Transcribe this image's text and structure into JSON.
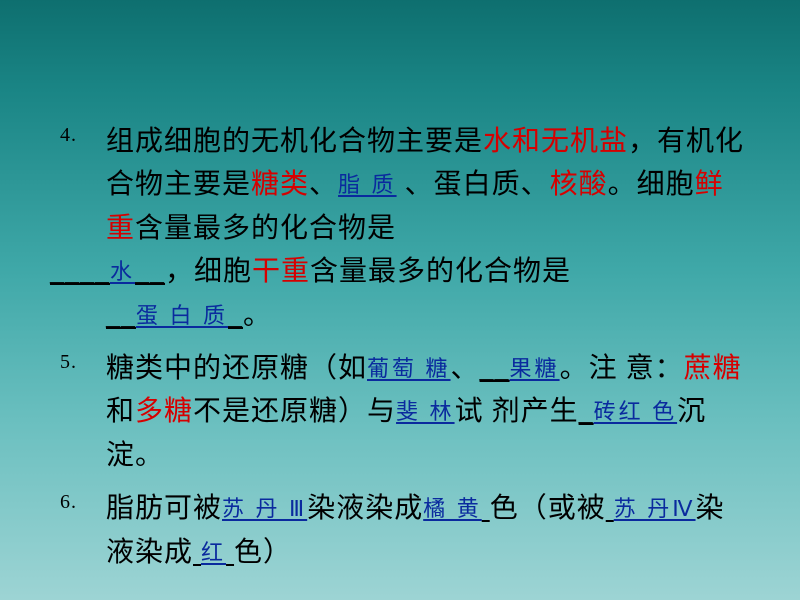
{
  "background": {
    "gradient_stops": [
      "#0e6f6f",
      "#1a8585",
      "#3fa8a8",
      "#6abfbf",
      "#9dd4d4"
    ]
  },
  "text_colors": {
    "normal": "#000000",
    "red": "#d60000",
    "blue": "#0a2a9e"
  },
  "font_sizes": {
    "body": 28,
    "blank": 22,
    "marker": 20
  },
  "items": [
    {
      "num": 4,
      "t1a": "组成细胞的无机化合物主要是",
      "t1b": "水和无机盐",
      "t1c": "，有机化合物主要是",
      "t1d": "糖类",
      "t1e": "、",
      "t1f_ul": "脂 质",
      "t1g": "、蛋白质、",
      "t1h": "核酸",
      "t1i": "。细胞",
      "t1j": "鲜重",
      "t1k": "含量最多的化合物是",
      "t1l_blank": "____",
      "t1m_ul": "水",
      "t1n_blank": "__",
      "t1o": "，细胞",
      "t1p": "干重",
      "t1q": "含量最多的化合物是",
      "t1r_blank": "__",
      "t1s_ul": "蛋   白  质",
      "t1t_blank": "_",
      "t1u": "。"
    },
    {
      "num": 5,
      "t2a": "糖类中的还原糖（如",
      "t2b_ul": "葡萄 糖",
      "t2c": "、",
      "t2d_blank": "__",
      "t2e_ul": "果糖",
      "t2f": "。",
      "t2g": "注 意：",
      "t2h": "蔗糖",
      "t2i": "和",
      "t2j": "多糖",
      "t2k": "不是还原糖）与",
      "t2l_ul": "斐 林",
      "t2m": "试 剂产生",
      "t2n_blank": "_",
      "t2o_ul": "砖红 色",
      "t2p": "沉淀。"
    },
    {
      "num": 6,
      "t3a": "脂肪可被",
      "t3b_ul": "苏 丹 Ⅲ",
      "t3c": "染液染成",
      "t3d_ul": "橘 黄",
      "t3e_blank": "      ",
      "t3f": "色（或被",
      "t3g_blank": "      ",
      "t3h_ul": "苏 丹Ⅳ",
      "t3i": "染液染成",
      "t3j_blank": "     ",
      "t3k_ul": "红",
      "t3l_blank": "    ",
      "t3m": "色）"
    }
  ]
}
